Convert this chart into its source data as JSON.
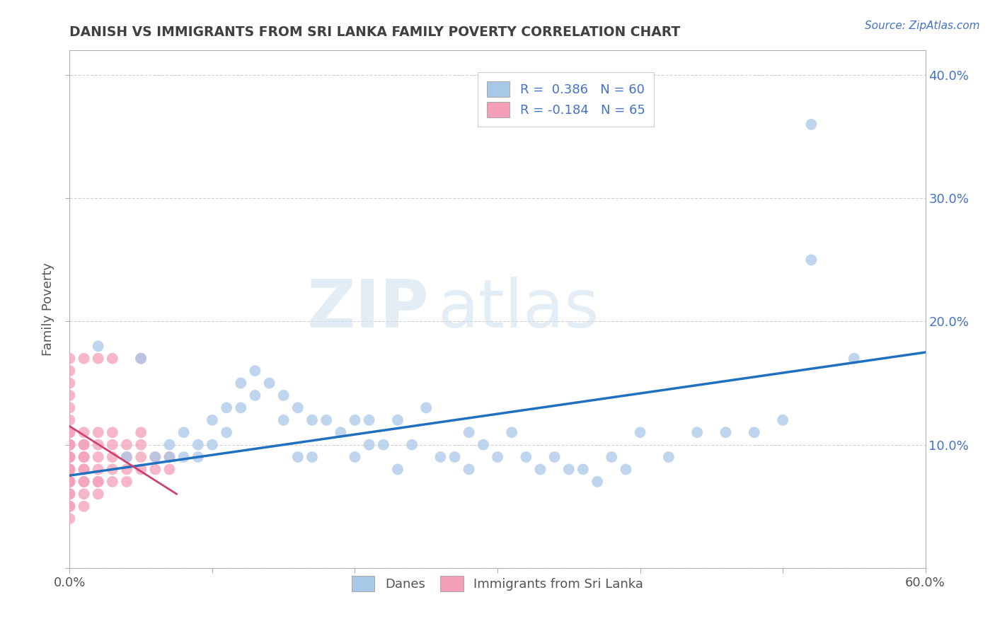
{
  "title": "DANISH VS IMMIGRANTS FROM SRI LANKA FAMILY POVERTY CORRELATION CHART",
  "source": "Source: ZipAtlas.com",
  "ylabel": "Family Poverty",
  "xlim": [
    0.0,
    0.6
  ],
  "ylim": [
    0.0,
    0.42
  ],
  "watermark_zip": "ZIP",
  "watermark_atlas": "atlas",
  "danes_color": "#a8c8e8",
  "immigrants_color": "#f4a0b8",
  "danes_line_color": "#2070c0",
  "immigrants_line_color": "#d04070",
  "background_color": "#ffffff",
  "grid_color": "#cccccc",
  "title_color": "#404040",
  "danes_x": [
    0.02,
    0.04,
    0.05,
    0.06,
    0.07,
    0.07,
    0.08,
    0.08,
    0.09,
    0.09,
    0.1,
    0.1,
    0.11,
    0.11,
    0.12,
    0.12,
    0.13,
    0.13,
    0.14,
    0.15,
    0.15,
    0.16,
    0.16,
    0.17,
    0.17,
    0.18,
    0.19,
    0.2,
    0.2,
    0.21,
    0.21,
    0.22,
    0.23,
    0.23,
    0.24,
    0.25,
    0.26,
    0.27,
    0.28,
    0.28,
    0.29,
    0.3,
    0.31,
    0.32,
    0.33,
    0.34,
    0.35,
    0.36,
    0.37,
    0.38,
    0.39,
    0.4,
    0.42,
    0.44,
    0.46,
    0.48,
    0.5,
    0.52,
    0.52,
    0.55
  ],
  "danes_y": [
    0.18,
    0.09,
    0.17,
    0.09,
    0.09,
    0.1,
    0.09,
    0.11,
    0.09,
    0.1,
    0.1,
    0.12,
    0.11,
    0.13,
    0.13,
    0.15,
    0.14,
    0.16,
    0.15,
    0.12,
    0.14,
    0.09,
    0.13,
    0.09,
    0.12,
    0.12,
    0.11,
    0.09,
    0.12,
    0.1,
    0.12,
    0.1,
    0.08,
    0.12,
    0.1,
    0.13,
    0.09,
    0.09,
    0.08,
    0.11,
    0.1,
    0.09,
    0.11,
    0.09,
    0.08,
    0.09,
    0.08,
    0.08,
    0.07,
    0.09,
    0.08,
    0.11,
    0.09,
    0.11,
    0.11,
    0.11,
    0.12,
    0.25,
    0.36,
    0.17
  ],
  "immigrants_x": [
    0.0,
    0.0,
    0.0,
    0.0,
    0.0,
    0.0,
    0.0,
    0.0,
    0.0,
    0.0,
    0.0,
    0.0,
    0.0,
    0.0,
    0.0,
    0.0,
    0.0,
    0.0,
    0.0,
    0.0,
    0.0,
    0.0,
    0.0,
    0.0,
    0.0,
    0.0,
    0.01,
    0.01,
    0.01,
    0.01,
    0.01,
    0.01,
    0.01,
    0.01,
    0.01,
    0.01,
    0.01,
    0.01,
    0.02,
    0.02,
    0.02,
    0.02,
    0.02,
    0.02,
    0.02,
    0.02,
    0.03,
    0.03,
    0.03,
    0.03,
    0.03,
    0.03,
    0.04,
    0.04,
    0.04,
    0.04,
    0.05,
    0.05,
    0.05,
    0.05,
    0.05,
    0.06,
    0.06,
    0.07,
    0.07
  ],
  "immigrants_y": [
    0.04,
    0.05,
    0.05,
    0.06,
    0.06,
    0.07,
    0.07,
    0.07,
    0.07,
    0.08,
    0.08,
    0.08,
    0.09,
    0.09,
    0.09,
    0.1,
    0.1,
    0.1,
    0.11,
    0.11,
    0.12,
    0.13,
    0.14,
    0.15,
    0.16,
    0.17,
    0.05,
    0.06,
    0.07,
    0.07,
    0.08,
    0.08,
    0.09,
    0.09,
    0.1,
    0.1,
    0.11,
    0.17,
    0.06,
    0.07,
    0.07,
    0.08,
    0.09,
    0.1,
    0.11,
    0.17,
    0.07,
    0.08,
    0.09,
    0.1,
    0.11,
    0.17,
    0.07,
    0.08,
    0.09,
    0.1,
    0.08,
    0.09,
    0.1,
    0.11,
    0.17,
    0.08,
    0.09,
    0.08,
    0.09
  ],
  "danes_line_x0": 0.0,
  "danes_line_y0": 0.075,
  "danes_line_x1": 0.6,
  "danes_line_y1": 0.175,
  "immigrants_line_x0": 0.0,
  "immigrants_line_y0": 0.115,
  "immigrants_line_x1": 0.075,
  "immigrants_line_y1": 0.06
}
